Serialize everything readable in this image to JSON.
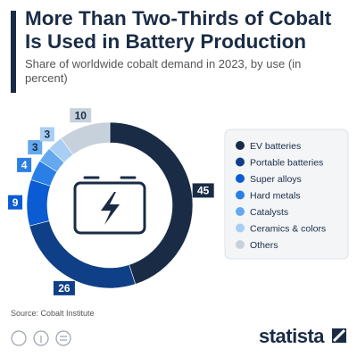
{
  "header": {
    "title": "More Than Two-Thirds of Cobalt Is Used in Battery Production",
    "subtitle": "Share of worldwide cobalt demand in 2023, by use (in percent)"
  },
  "chart_data": {
    "type": "donut",
    "categories": [
      "EV batteries",
      "Portable batteries",
      "Super alloys",
      "Hard metals",
      "Catalysts",
      "Ceramics & colors",
      "Others"
    ],
    "values": [
      45,
      26,
      9,
      4,
      3,
      3,
      10
    ],
    "colors": [
      "#1a2c45",
      "#0f3f87",
      "#0b5bd3",
      "#2a7fe6",
      "#64a8ee",
      "#a9cef4",
      "#c6d1db"
    ]
  },
  "footer": {
    "source": "Source: Cobalt Institute",
    "logo": "statista"
  }
}
